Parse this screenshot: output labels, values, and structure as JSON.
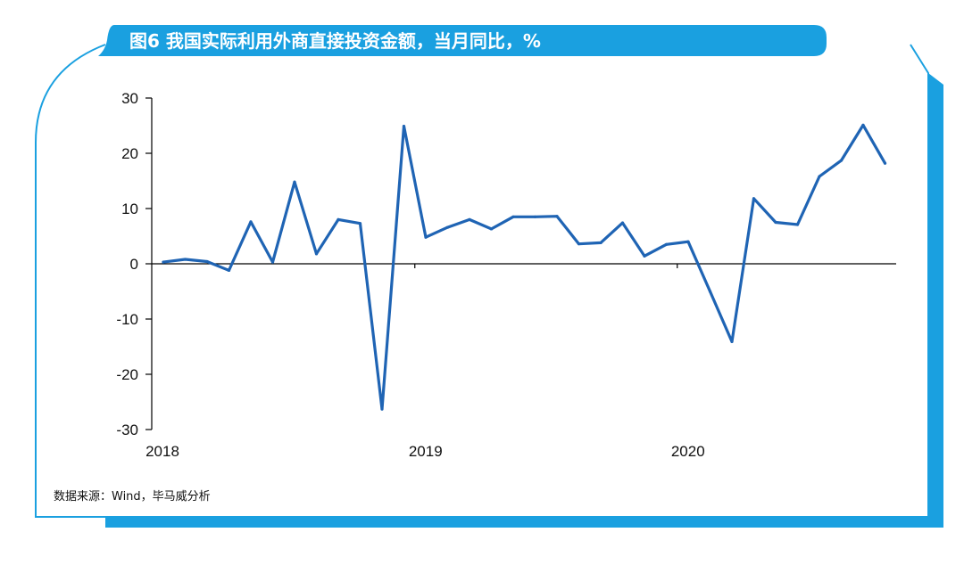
{
  "header": {
    "title": "图6 我国实际利用外商直接投资金额，当月同比，%"
  },
  "footer": {
    "source": "数据来源：Wind，毕马威分析"
  },
  "colors": {
    "accent": "#1aa0e0",
    "line": "#1f64b4",
    "axis": "#000000"
  },
  "chart_data": {
    "type": "line",
    "title": "图6 我国实际利用外商直接投资金额，当月同比，%",
    "xlabel": "",
    "ylabel": "",
    "ylim": [
      -30,
      30
    ],
    "yticks": [
      "30",
      "20",
      "10",
      "0",
      "-10",
      "-20",
      "-30"
    ],
    "ytick_values": [
      30,
      20,
      10,
      0,
      -10,
      -20,
      -30
    ],
    "xtick_labels": [
      "2018",
      "2019",
      "2020"
    ],
    "grid": false,
    "legend": "none",
    "x": [
      "2018-01",
      "2018-02",
      "2018-03",
      "2018-04",
      "2018-05",
      "2018-06",
      "2018-07",
      "2018-08",
      "2018-09",
      "2018-10",
      "2018-11",
      "2018-12",
      "2019-01",
      "2019-02",
      "2019-03",
      "2019-04",
      "2019-05",
      "2019-06",
      "2019-07",
      "2019-08",
      "2019-09",
      "2019-10",
      "2019-11",
      "2019-12",
      "2020-01",
      "2020-02",
      "2020-03",
      "2020-04",
      "2020-05",
      "2020-06",
      "2020-07",
      "2020-08",
      "2020-09",
      "2020-10"
    ],
    "series": [
      {
        "values": [
          0.3,
          0.8,
          0.4,
          -1.2,
          7.6,
          0.3,
          14.8,
          1.8,
          8.0,
          7.3,
          -26.3,
          24.9,
          4.8,
          6.6,
          8.0,
          6.3,
          8.5,
          8.5,
          8.6,
          3.6,
          3.8,
          7.4,
          1.4,
          3.5,
          4.0,
          -5.0,
          -14.1,
          11.8,
          7.5,
          7.1,
          15.8,
          18.7,
          25.1,
          18.2
        ]
      }
    ]
  }
}
